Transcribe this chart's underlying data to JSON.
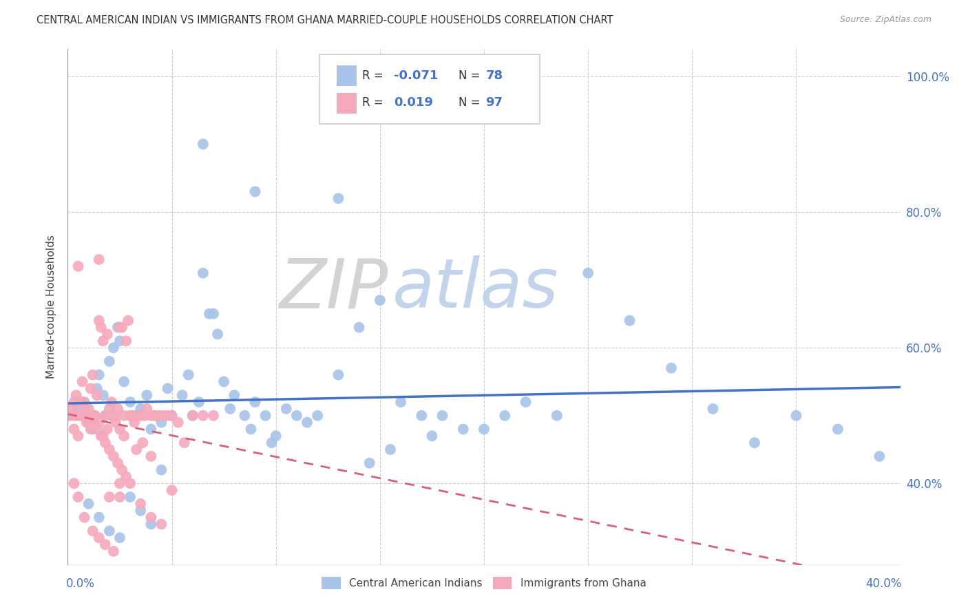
{
  "title": "CENTRAL AMERICAN INDIAN VS IMMIGRANTS FROM GHANA MARRIED-COUPLE HOUSEHOLDS CORRELATION CHART",
  "source": "Source: ZipAtlas.com",
  "ylabel": "Married-couple Households",
  "legend_label1": "Central American Indians",
  "legend_label2": "Immigrants from Ghana",
  "color_blue": "#a8c4e8",
  "color_pink": "#f4a8bc",
  "trendline_blue": "#4472c4",
  "trendline_pink": "#d4607a",
  "watermark_zip_color": "#d0d0d0",
  "watermark_atlas_color": "#b8cce8",
  "xlim": [
    0.0,
    0.4
  ],
  "ylim": [
    0.28,
    1.04
  ],
  "xticks": [
    0.0,
    0.05,
    0.1,
    0.15,
    0.2,
    0.25,
    0.3,
    0.35,
    0.4
  ],
  "yticks_right": [
    0.4,
    0.6,
    0.8,
    1.0
  ],
  "ytick_labels": [
    "40.0%",
    "60.0%",
    "80.0%",
    "100.0%"
  ],
  "blue_x": [
    0.003,
    0.005,
    0.007,
    0.009,
    0.01,
    0.012,
    0.014,
    0.015,
    0.017,
    0.018,
    0.02,
    0.022,
    0.024,
    0.025,
    0.027,
    0.03,
    0.032,
    0.035,
    0.038,
    0.04,
    0.042,
    0.045,
    0.048,
    0.05,
    0.055,
    0.058,
    0.06,
    0.063,
    0.065,
    0.068,
    0.07,
    0.072,
    0.075,
    0.078,
    0.08,
    0.085,
    0.088,
    0.09,
    0.095,
    0.098,
    0.1,
    0.105,
    0.11,
    0.115,
    0.12,
    0.13,
    0.14,
    0.15,
    0.16,
    0.17,
    0.18,
    0.19,
    0.2,
    0.21,
    0.22,
    0.065,
    0.09,
    0.13,
    0.25,
    0.27,
    0.29,
    0.31,
    0.33,
    0.35,
    0.37,
    0.39,
    0.235,
    0.175,
    0.155,
    0.145,
    0.01,
    0.015,
    0.02,
    0.025,
    0.03,
    0.035,
    0.04,
    0.045
  ],
  "blue_y": [
    0.5,
    0.51,
    0.52,
    0.5,
    0.49,
    0.48,
    0.54,
    0.56,
    0.53,
    0.5,
    0.58,
    0.6,
    0.63,
    0.61,
    0.55,
    0.52,
    0.5,
    0.51,
    0.53,
    0.48,
    0.5,
    0.49,
    0.54,
    0.5,
    0.53,
    0.56,
    0.5,
    0.52,
    0.71,
    0.65,
    0.65,
    0.62,
    0.55,
    0.51,
    0.53,
    0.5,
    0.48,
    0.52,
    0.5,
    0.46,
    0.47,
    0.51,
    0.5,
    0.49,
    0.5,
    0.56,
    0.63,
    0.67,
    0.52,
    0.5,
    0.5,
    0.48,
    0.48,
    0.5,
    0.52,
    0.9,
    0.83,
    0.82,
    0.71,
    0.64,
    0.57,
    0.51,
    0.46,
    0.5,
    0.48,
    0.44,
    0.5,
    0.47,
    0.45,
    0.43,
    0.37,
    0.35,
    0.33,
    0.32,
    0.38,
    0.36,
    0.34,
    0.42
  ],
  "pink_x": [
    0.001,
    0.002,
    0.003,
    0.004,
    0.005,
    0.006,
    0.007,
    0.008,
    0.009,
    0.01,
    0.011,
    0.012,
    0.013,
    0.014,
    0.015,
    0.016,
    0.017,
    0.018,
    0.019,
    0.02,
    0.021,
    0.022,
    0.023,
    0.024,
    0.025,
    0.026,
    0.027,
    0.028,
    0.029,
    0.03,
    0.031,
    0.032,
    0.033,
    0.035,
    0.037,
    0.038,
    0.04,
    0.042,
    0.044,
    0.046,
    0.048,
    0.05,
    0.053,
    0.056,
    0.06,
    0.065,
    0.07,
    0.003,
    0.005,
    0.007,
    0.009,
    0.011,
    0.013,
    0.015,
    0.017,
    0.019,
    0.021,
    0.023,
    0.025,
    0.027,
    0.03,
    0.033,
    0.036,
    0.04,
    0.004,
    0.006,
    0.008,
    0.01,
    0.012,
    0.014,
    0.016,
    0.018,
    0.02,
    0.022,
    0.024,
    0.026,
    0.028,
    0.003,
    0.005,
    0.008,
    0.012,
    0.015,
    0.018,
    0.022,
    0.025,
    0.03,
    0.035,
    0.04,
    0.045,
    0.05,
    0.015,
    0.02,
    0.025
  ],
  "pink_y": [
    0.5,
    0.51,
    0.52,
    0.5,
    0.72,
    0.5,
    0.55,
    0.52,
    0.5,
    0.51,
    0.54,
    0.56,
    0.5,
    0.53,
    0.64,
    0.63,
    0.61,
    0.5,
    0.62,
    0.51,
    0.52,
    0.5,
    0.5,
    0.51,
    0.63,
    0.63,
    0.5,
    0.61,
    0.64,
    0.5,
    0.5,
    0.49,
    0.5,
    0.5,
    0.5,
    0.51,
    0.5,
    0.5,
    0.5,
    0.5,
    0.5,
    0.5,
    0.49,
    0.46,
    0.5,
    0.5,
    0.5,
    0.48,
    0.47,
    0.5,
    0.49,
    0.48,
    0.5,
    0.49,
    0.47,
    0.48,
    0.5,
    0.49,
    0.48,
    0.47,
    0.5,
    0.45,
    0.46,
    0.44,
    0.53,
    0.52,
    0.51,
    0.5,
    0.49,
    0.48,
    0.47,
    0.46,
    0.45,
    0.44,
    0.43,
    0.42,
    0.41,
    0.4,
    0.38,
    0.35,
    0.33,
    0.32,
    0.31,
    0.3,
    0.38,
    0.4,
    0.37,
    0.35,
    0.34,
    0.39,
    0.73,
    0.38,
    0.4
  ]
}
